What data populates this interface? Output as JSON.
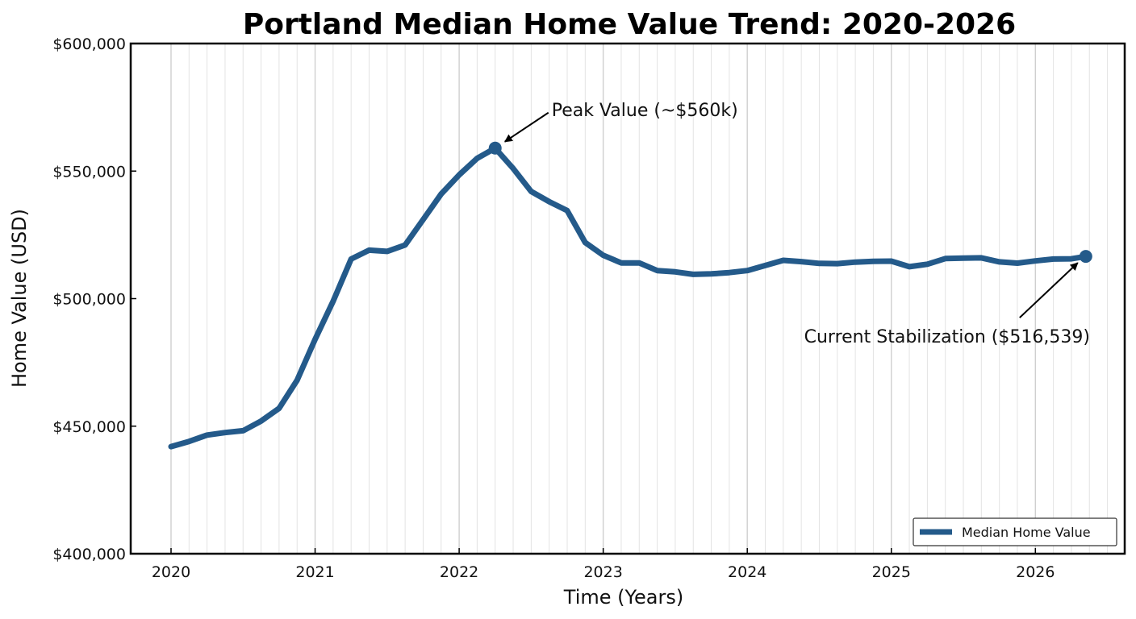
{
  "chart_data": {
    "type": "line",
    "title": "Portland Median Home Value Trend: 2020-2026",
    "xlabel": "Time (Years)",
    "ylabel": "Home Value (USD)",
    "xlim": [
      2019.72,
      2026.62
    ],
    "ylim": [
      400000,
      600000
    ],
    "x_ticks": [
      {
        "value": 2020,
        "label": "2020"
      },
      {
        "value": 2021,
        "label": "2021"
      },
      {
        "value": 2022,
        "label": "2022"
      },
      {
        "value": 2023,
        "label": "2023"
      },
      {
        "value": 2024,
        "label": "2024"
      },
      {
        "value": 2025,
        "label": "2025"
      },
      {
        "value": 2026,
        "label": "2026"
      }
    ],
    "y_ticks": [
      {
        "value": 400000,
        "label": "$400,000"
      },
      {
        "value": 450000,
        "label": "$450,000"
      },
      {
        "value": 500000,
        "label": "$500,000"
      },
      {
        "value": 550000,
        "label": "$550,000"
      },
      {
        "value": 600000,
        "label": "$600,000"
      }
    ],
    "grid": "vertical",
    "legend_position": "bottom-right",
    "color": "#245a8a",
    "series": [
      {
        "name": "Median Home Value",
        "x": [
          2020.0,
          2020.125,
          2020.25,
          2020.375,
          2020.5,
          2020.625,
          2020.75,
          2020.875,
          2021.0,
          2021.125,
          2021.25,
          2021.375,
          2021.5,
          2021.625,
          2021.75,
          2021.875,
          2022.0,
          2022.125,
          2022.25,
          2022.375,
          2022.5,
          2022.625,
          2022.75,
          2022.875,
          2023.0,
          2023.125,
          2023.25,
          2023.375,
          2023.5,
          2023.625,
          2023.75,
          2023.875,
          2024.0,
          2024.125,
          2024.25,
          2024.375,
          2024.5,
          2024.625,
          2024.75,
          2024.875,
          2025.0,
          2025.125,
          2025.25,
          2025.375,
          2025.5,
          2025.625,
          2025.75,
          2025.875,
          2026.0,
          2026.125,
          2026.25,
          2026.35
        ],
        "values": [
          442000,
          444000,
          446500,
          447500,
          448200,
          452000,
          457000,
          468000,
          484000,
          499000,
          515500,
          519000,
          518500,
          521000,
          531000,
          541000,
          548500,
          555000,
          559000,
          551000,
          542000,
          538000,
          534500,
          522000,
          517000,
          514000,
          514000,
          511000,
          510500,
          509500,
          509700,
          510200,
          511000,
          513000,
          515000,
          514500,
          513800,
          513700,
          514300,
          514600,
          514700,
          512500,
          513500,
          515700,
          515900,
          516000,
          514400,
          513900,
          514800,
          515500,
          515600,
          516539
        ]
      }
    ],
    "annotations": [
      {
        "text": "Peak Value (~$560k)",
        "x": 2022.25,
        "y": 559000
      },
      {
        "text": "Current Stabilization ($516,539)",
        "x": 2026.35,
        "y": 516539
      }
    ]
  }
}
